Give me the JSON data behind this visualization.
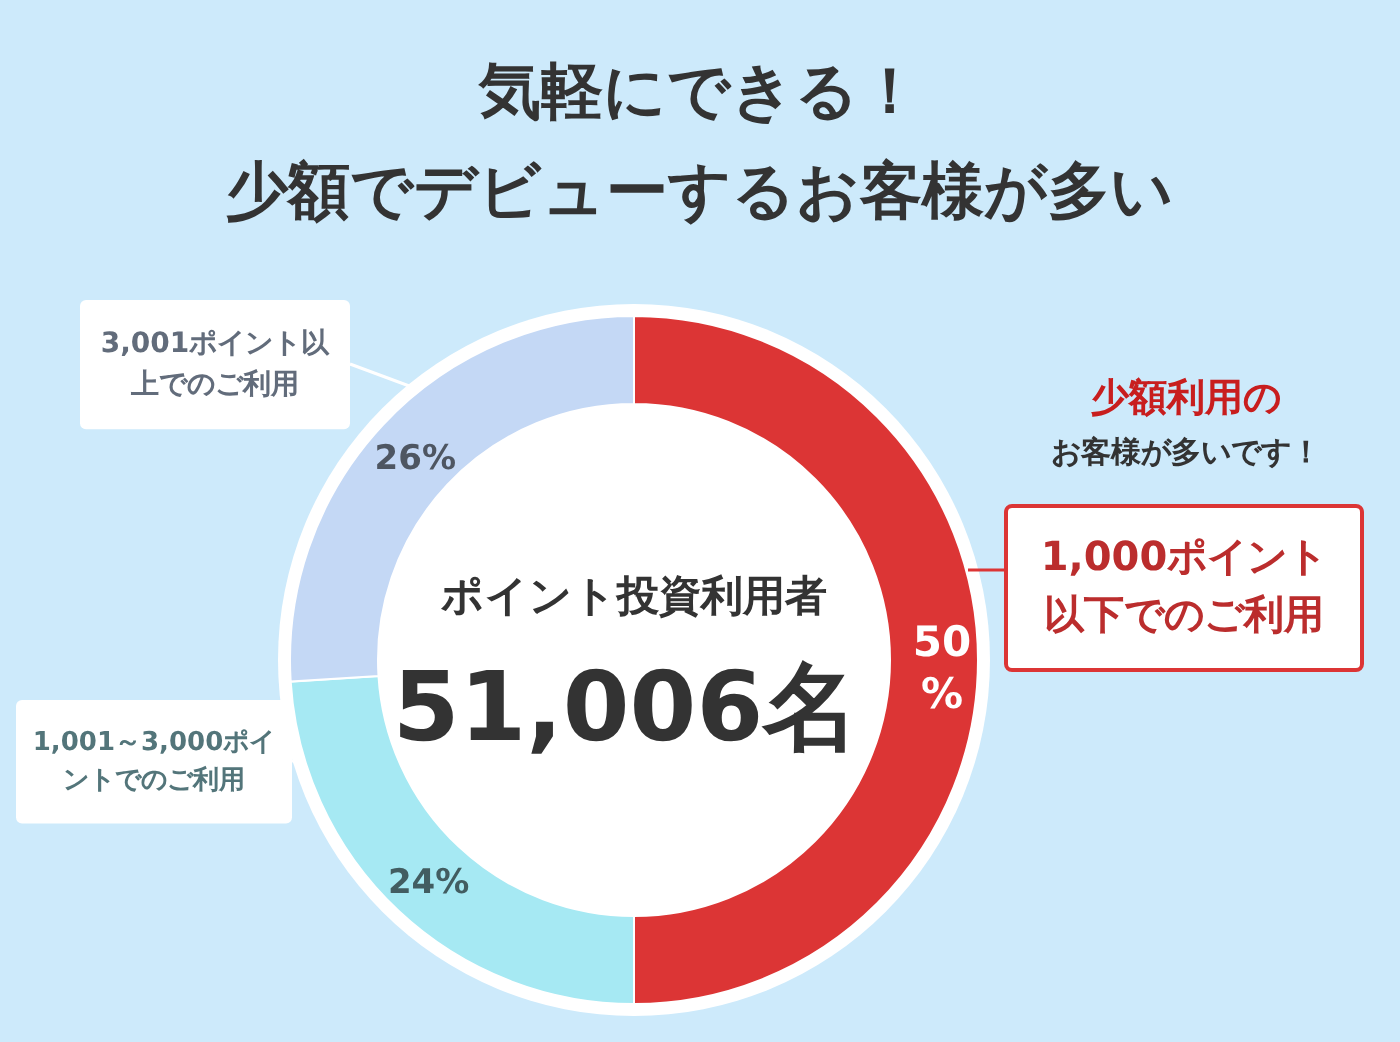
{
  "chart_data": {
    "type": "donut",
    "title": "気軽にできる！",
    "subtitle": "少額でデビューするお客様が多い",
    "categories": [
      "1,000ポイント以下でのご利用",
      "1,001～3,000ポイントでのご利用",
      "3,001ポイント以上でのご利用"
    ],
    "values": [
      50,
      24,
      26
    ],
    "colors": [
      "#dc3535",
      "#a6e9f3",
      "#c4d8f5"
    ],
    "value_labels": [
      "50%",
      "24%",
      "26%"
    ],
    "annotations": [
      "ポイント投資利用者",
      "51,006名",
      "少額利用の",
      "お客様が多いです！"
    ]
  }
}
